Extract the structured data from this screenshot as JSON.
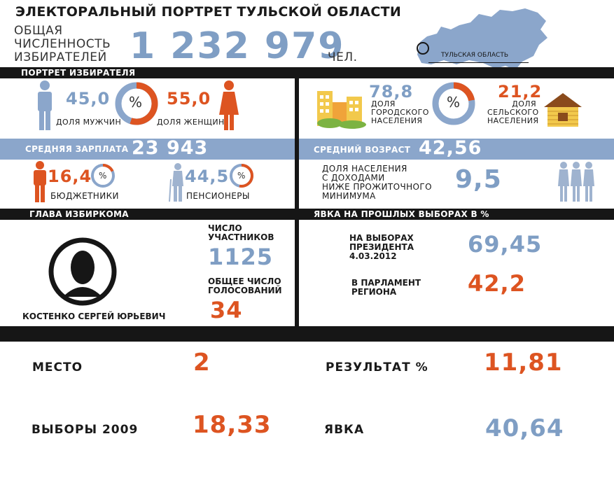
{
  "title": "ЭЛЕКТОРАЛЬНЫЙ ПОРТРЕТ ТУЛЬСКОЙ ОБЛАСТИ",
  "voters": {
    "label_line1": "ОБЩАЯ",
    "label_line2": "ЧИСЛЕННОСТЬ",
    "label_line3": "ИЗБИРАТЕЛЕЙ",
    "value": "1 232 979",
    "unit": "ЧЕЛ."
  },
  "map": {
    "label": "ТУЛЬСКАЯ ОБЛАСТЬ"
  },
  "portrait": {
    "header": "ПОРТРЕТ ИЗБИРАТЕЛЯ",
    "men_value": "45,0",
    "men_label": "ДОЛЯ МУЖЧИН",
    "women_value": "55,0",
    "women_label": "ДОЛЯ ЖЕНЩИН",
    "urban_value": "78,8",
    "urban_label_1": "ДОЛЯ",
    "urban_label_2": "ГОРОДСКОГО",
    "urban_label_3": "НАСЕЛЕНИЯ",
    "rural_value": "21,2",
    "rural_label_1": "ДОЛЯ",
    "rural_label_2": "СЕЛЬСКОГО",
    "rural_label_3": "НАСЕЛЕНИЯ",
    "percent_sign": "%"
  },
  "salary": {
    "label": "СРЕДНЯЯ ЗАРПЛАТА",
    "value": "23 943"
  },
  "age": {
    "label": "СРЕДНИЙ ВОЗРАСТ",
    "value": "42,56"
  },
  "budget": {
    "value": "16,4",
    "label": "БЮДЖЕТНИКИ"
  },
  "pensioners": {
    "value": "44,5",
    "label": "ПЕНСИОНЕРЫ"
  },
  "poverty": {
    "line1": "ДОЛЯ НАСЕЛЕНИЯ",
    "line2": "С ДОХОДАМИ",
    "line3": "НИЖЕ ПРОЖИТОЧНОГО",
    "line4": "МИНИМУМА",
    "value": "9,5"
  },
  "head": {
    "header": "ГЛАВА ИЗБИРКОМА",
    "name": "КОСТЕНКО СЕРГЕЙ ЮРЬЕВИЧ",
    "participants_label_1": "ЧИСЛО",
    "participants_label_2": "УЧАСТНИКОВ",
    "participants_value": "1125",
    "votes_label_1": "ОБЩЕЕ ЧИСЛО",
    "votes_label_2": "ГОЛОСОВАНИЙ",
    "votes_value": "34"
  },
  "turnout": {
    "header": "ЯВКА НА ПРОШЛЫХ ВЫБОРАХ В %",
    "president_label_1": "НА ВЫБОРАХ",
    "president_label_2": "ПРЕЗИДЕНТА",
    "president_label_3": "4.03.2012",
    "president_value": "69,45",
    "parliament_label_1": "В ПАРЛАМЕНТ",
    "parliament_label_2": "РЕГИОНА",
    "parliament_value": "42,2"
  },
  "bottom": {
    "place_label": "МЕСТО",
    "place_value": "2",
    "result_label": "РЕЗУЛЬТАТ %",
    "result_value": "11,81",
    "elections_label": "ВЫБОРЫ 2009",
    "elections_value": "18,33",
    "turnout_label": "ЯВКА",
    "turnout_value": "40,64"
  },
  "colors": {
    "blue": "#7f9ec4",
    "orange": "#dd5421",
    "dark": "#161616",
    "bar_blue": "#8ba6cb"
  }
}
